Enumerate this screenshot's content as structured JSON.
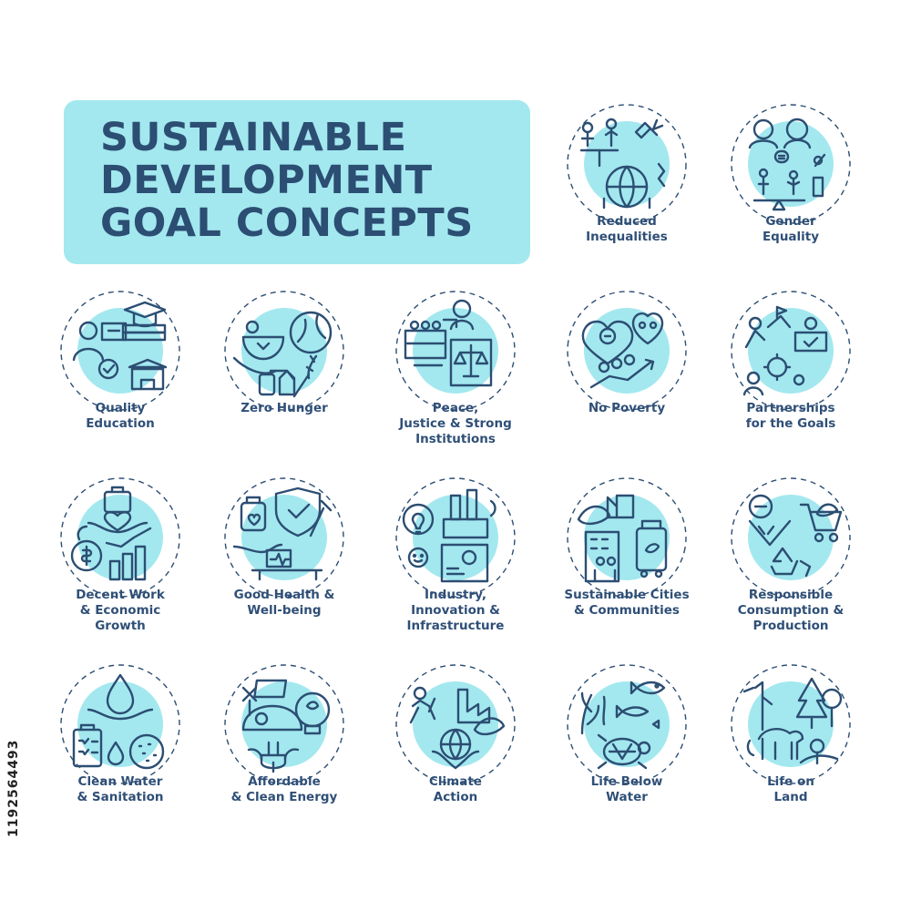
{
  "colors": {
    "accent": "#a3e8ef",
    "ink": "#2c4e73",
    "label": "#2f4f77",
    "background": "#ffffff"
  },
  "title": {
    "lines": [
      "SUSTAINABLE",
      "DEVELOPMENT",
      "GOAL CONCEPTS"
    ]
  },
  "stock_id": "1192564493",
  "goals": [
    {
      "icon": "reduced-inequalities-icon",
      "label": [
        "Reduced",
        "Inequalities"
      ]
    },
    {
      "icon": "gender-equality-icon",
      "label": [
        "Gender",
        "Equality"
      ]
    },
    {
      "icon": "quality-education-icon",
      "label": [
        "Quality",
        "Education"
      ]
    },
    {
      "icon": "zero-hunger-icon",
      "label": [
        "Zero Hunger"
      ]
    },
    {
      "icon": "peace-justice-icon",
      "label": [
        "Peace,",
        "Justice & Strong",
        "Institutions"
      ]
    },
    {
      "icon": "no-poverty-icon",
      "label": [
        "No Poverty"
      ]
    },
    {
      "icon": "partnerships-icon",
      "label": [
        "Partnerships",
        "for the Goals"
      ]
    },
    {
      "icon": "decent-work-icon",
      "label": [
        "Decent Work",
        "& Economic",
        "Growth"
      ]
    },
    {
      "icon": "good-health-icon",
      "label": [
        "Good Health &",
        "Well-being"
      ]
    },
    {
      "icon": "industry-innovation-icon",
      "label": [
        "Industry,",
        "Innovation &",
        "Infrastructure"
      ]
    },
    {
      "icon": "sustainable-cities-icon",
      "label": [
        "Sustainable Cities",
        "& Communities"
      ]
    },
    {
      "icon": "responsible-consumption-icon",
      "label": [
        "Responsible",
        "Consumption &",
        "Production"
      ]
    },
    {
      "icon": "clean-water-icon",
      "label": [
        "Clean Water",
        "& Sanitation"
      ]
    },
    {
      "icon": "clean-energy-icon",
      "label": [
        "Affordable",
        "& Clean Energy"
      ]
    },
    {
      "icon": "climate-action-icon",
      "label": [
        "Climate",
        "Action"
      ]
    },
    {
      "icon": "life-below-water-icon",
      "label": [
        "Life Below",
        "Water"
      ]
    },
    {
      "icon": "life-on-land-icon",
      "label": [
        "Life on",
        "Land"
      ]
    }
  ]
}
